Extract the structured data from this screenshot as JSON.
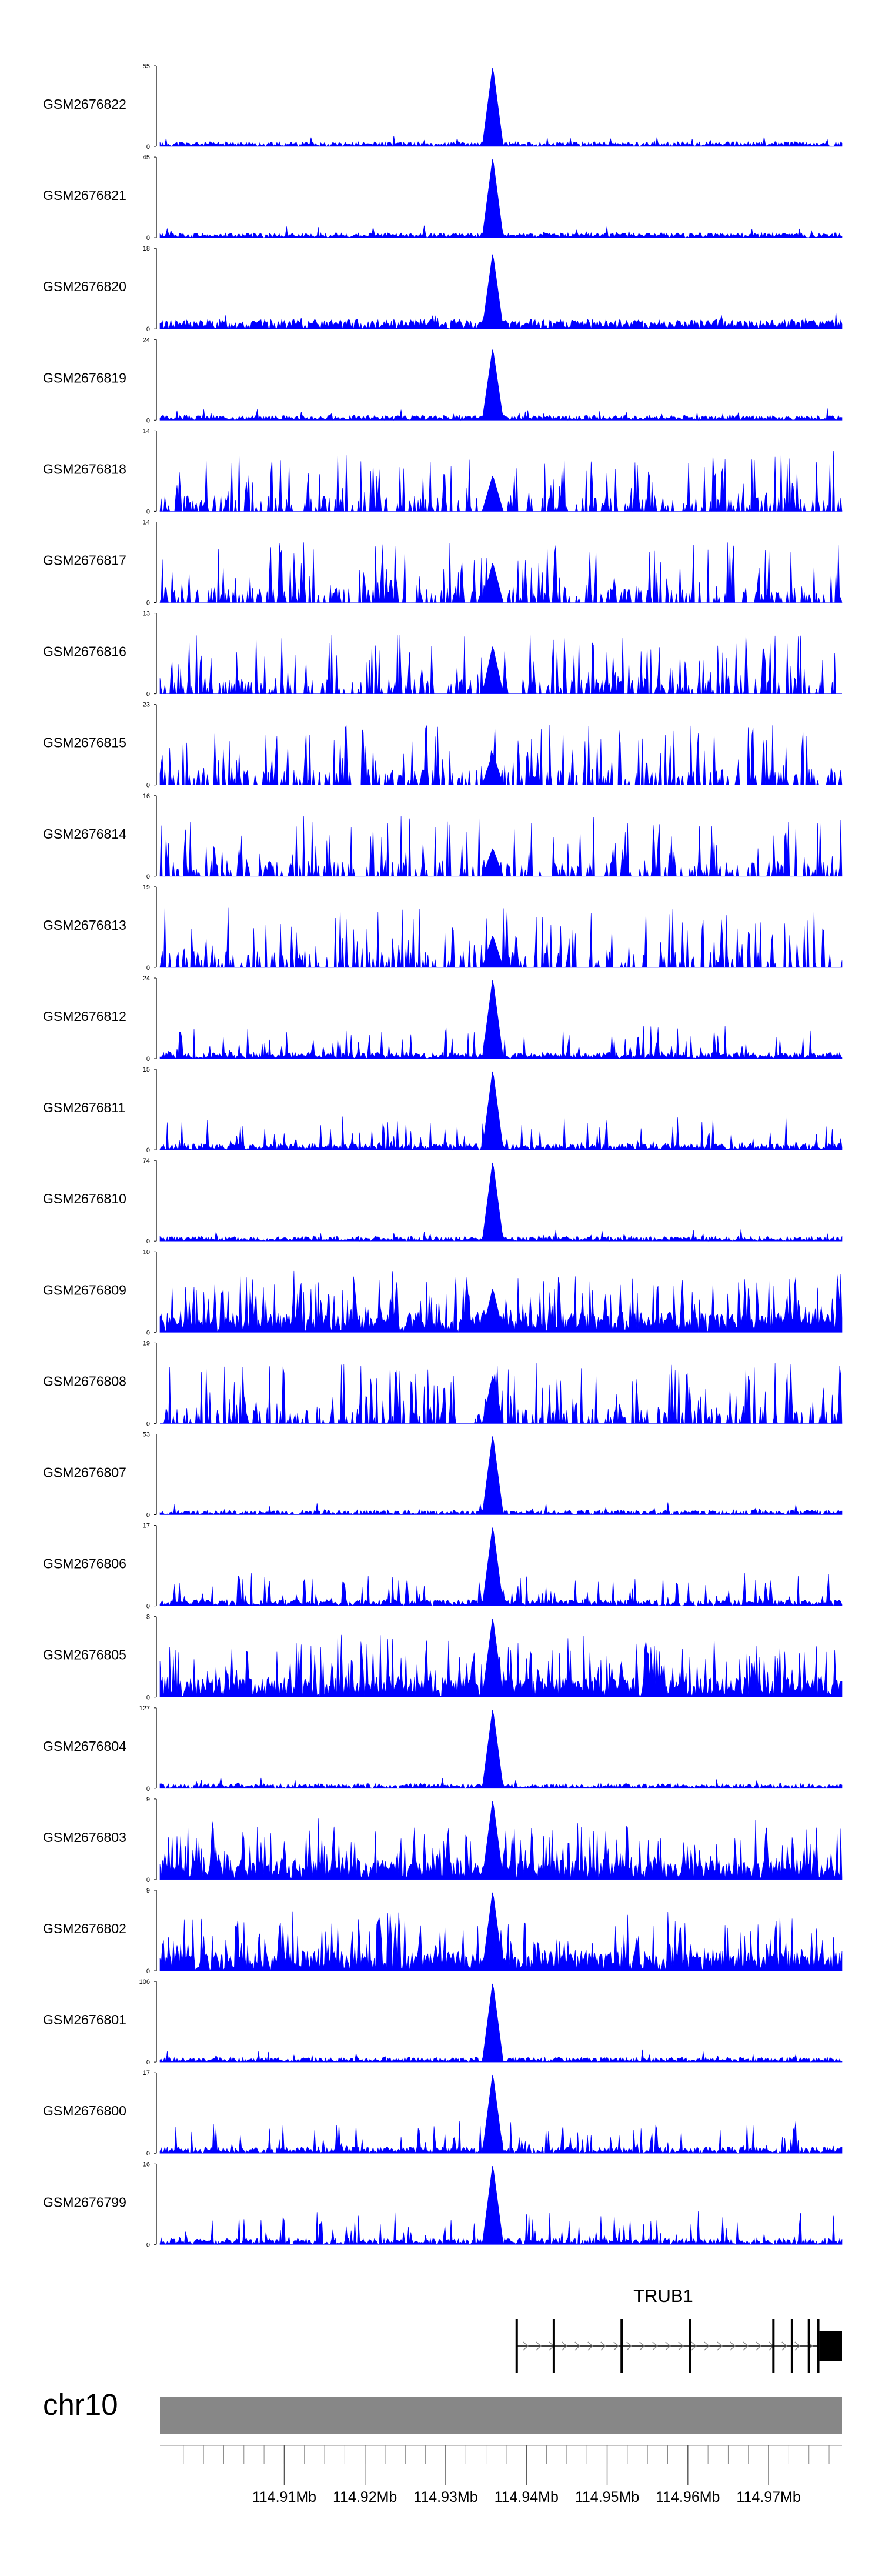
{
  "chart_data": {
    "type": "area",
    "chromosome": "chr10",
    "xlim_mb": [
      114.8946,
      114.9791
    ],
    "x_ticks": [
      "114.91Mb",
      "114.92Mb",
      "114.93Mb",
      "114.94Mb",
      "114.95Mb",
      "114.96Mb",
      "114.97Mb"
    ],
    "x_tick_values_mb": [
      114.91,
      114.92,
      114.93,
      114.94,
      114.95,
      114.96,
      114.97
    ],
    "series_color": "#0000ff",
    "tracks": [
      {
        "name": "GSM2676822",
        "ymax": "55",
        "style": "low",
        "peak": 1.0,
        "seed": 11
      },
      {
        "name": "GSM2676821",
        "ymax": "45",
        "style": "low",
        "peak": 1.0,
        "seed": 12
      },
      {
        "name": "GSM2676820",
        "ymax": "18",
        "style": "low-dense",
        "peak": 0.95,
        "seed": 13
      },
      {
        "name": "GSM2676819",
        "ymax": "24",
        "style": "low",
        "peak": 0.9,
        "seed": 14
      },
      {
        "name": "GSM2676818",
        "ymax": "14",
        "style": "spiky-tri",
        "peak": 0.45,
        "seed": 15
      },
      {
        "name": "GSM2676817",
        "ymax": "14",
        "style": "spiky-tri",
        "peak": 0.5,
        "seed": 16
      },
      {
        "name": "GSM2676816",
        "ymax": "13",
        "style": "spiky-tri",
        "peak": 0.6,
        "seed": 17
      },
      {
        "name": "GSM2676815",
        "ymax": "23",
        "style": "spiky-tri",
        "peak": 0.4,
        "seed": 18
      },
      {
        "name": "GSM2676814",
        "ymax": "16",
        "style": "spiky-tri",
        "peak": 0.35,
        "seed": 19
      },
      {
        "name": "GSM2676813",
        "ymax": "19",
        "style": "spiky-tri",
        "peak": 0.4,
        "seed": 20
      },
      {
        "name": "GSM2676812",
        "ymax": "24",
        "style": "medium",
        "peak": 1.0,
        "seed": 21
      },
      {
        "name": "GSM2676811",
        "ymax": "15",
        "style": "medium",
        "peak": 1.0,
        "seed": 22
      },
      {
        "name": "GSM2676810",
        "ymax": "74",
        "style": "low",
        "peak": 1.0,
        "seed": 23
      },
      {
        "name": "GSM2676809",
        "ymax": "10",
        "style": "dense",
        "peak": 0.55,
        "seed": 24
      },
      {
        "name": "GSM2676808",
        "ymax": "19",
        "style": "spiky-tri",
        "peak": 0.6,
        "seed": 25
      },
      {
        "name": "GSM2676807",
        "ymax": "53",
        "style": "low",
        "peak": 1.0,
        "seed": 26
      },
      {
        "name": "GSM2676806",
        "ymax": "17",
        "style": "medium",
        "peak": 1.0,
        "seed": 27
      },
      {
        "name": "GSM2676805",
        "ymax": "8",
        "style": "dense",
        "peak": 1.0,
        "seed": 28
      },
      {
        "name": "GSM2676804",
        "ymax": "127",
        "style": "low",
        "peak": 1.0,
        "seed": 29
      },
      {
        "name": "GSM2676803",
        "ymax": "9",
        "style": "dense",
        "peak": 1.0,
        "seed": 30
      },
      {
        "name": "GSM2676802",
        "ymax": "9",
        "style": "dense",
        "peak": 1.0,
        "seed": 31
      },
      {
        "name": "GSM2676801",
        "ymax": "106",
        "style": "low",
        "peak": 1.0,
        "seed": 32
      },
      {
        "name": "GSM2676800",
        "ymax": "17",
        "style": "medium",
        "peak": 1.0,
        "seed": 33
      },
      {
        "name": "GSM2676799",
        "ymax": "16",
        "style": "medium",
        "peak": 1.0,
        "seed": 34
      }
    ],
    "y_min_label": "0",
    "gene": {
      "name": "TRUB1",
      "start_mb": 114.9388,
      "end_mb": 114.9791,
      "strand": "+",
      "exons_mb": [
        114.9388,
        114.9434,
        114.9518,
        114.9603,
        114.9706,
        114.9729,
        114.975
      ],
      "last_exon_mb": [
        114.9763,
        114.9791
      ]
    }
  }
}
